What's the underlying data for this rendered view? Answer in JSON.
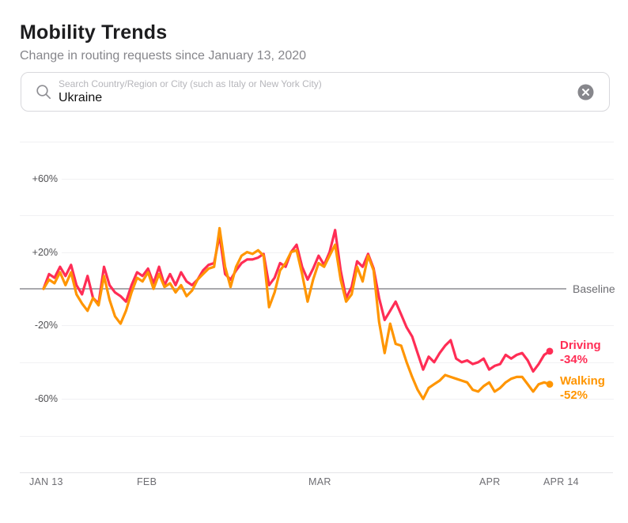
{
  "header": {
    "title": "Mobility Trends",
    "subtitle": "Change in routing requests since January 13, 2020"
  },
  "search": {
    "placeholder": "Search Country/Region or City (such as Italy or New York City)",
    "value": "Ukraine",
    "search_icon": "magnifying-glass",
    "clear_icon": "circle-x"
  },
  "chart_data": {
    "type": "line",
    "title": "Mobility Trends",
    "xlabel": "",
    "ylabel": "Change in routing requests (%)",
    "grid": "horizontal-only",
    "x": {
      "unit": "day",
      "num_points": 93,
      "tick_days": [
        0,
        19,
        48,
        79,
        92
      ],
      "tick_labels": [
        "JAN 13",
        "FEB",
        "MAR",
        "APR",
        "APR 14"
      ]
    },
    "y": {
      "unit": "%",
      "ylim": [
        -100,
        80
      ],
      "gridline_step": 20,
      "gridlines": [
        {
          "value": 80,
          "label": ""
        },
        {
          "value": 60,
          "label": "+60%"
        },
        {
          "value": 40,
          "label": ""
        },
        {
          "value": 20,
          "label": "+20%"
        },
        {
          "value": 0,
          "label": "",
          "baseline": true
        },
        {
          "value": -20,
          "label": "-20%"
        },
        {
          "value": -40,
          "label": ""
        },
        {
          "value": -60,
          "label": "-60%"
        },
        {
          "value": -80,
          "label": ""
        }
      ]
    },
    "baseline_label": "Baseline",
    "series": [
      {
        "name": "Driving",
        "color": "#ff2d55",
        "end_label": "Driving",
        "end_value_label": "-34%",
        "values": [
          0,
          8,
          6,
          12,
          7,
          13,
          2,
          -3,
          7,
          -5,
          -8,
          12,
          2,
          -2,
          -4,
          -7,
          2,
          9,
          7,
          11,
          3,
          12,
          2,
          8,
          2,
          9,
          4,
          2,
          5,
          10,
          13,
          14,
          29,
          8,
          5,
          10,
          14,
          16,
          16,
          17,
          19,
          2,
          6,
          14,
          12,
          20,
          24,
          12,
          5,
          11,
          18,
          13,
          20,
          32,
          10,
          -5,
          1,
          15,
          12,
          19,
          11,
          -5,
          -17,
          -12,
          -7,
          -14,
          -21,
          -26,
          -35,
          -44,
          -37,
          -40,
          -35,
          -31,
          -28,
          -38,
          -40,
          -39,
          -41,
          -40,
          -38,
          -44,
          -42,
          -41,
          -36,
          -38,
          -36,
          -35,
          -39,
          -45,
          -41,
          -36,
          -34
        ]
      },
      {
        "name": "Walking",
        "color": "#ff9500",
        "end_label": "Walking",
        "end_value_label": "-52%",
        "values": [
          0,
          5,
          3,
          9,
          2,
          9,
          -3,
          -8,
          -12,
          -5,
          -9,
          7,
          -6,
          -15,
          -19,
          -12,
          -2,
          6,
          4,
          9,
          0,
          8,
          1,
          3,
          -2,
          2,
          -4,
          -1,
          5,
          8,
          11,
          12,
          33,
          12,
          1,
          12,
          18,
          20,
          19,
          21,
          18,
          -10,
          -2,
          10,
          14,
          20,
          21,
          8,
          -7,
          5,
          14,
          12,
          18,
          24,
          5,
          -7,
          -3,
          12,
          4,
          18,
          10,
          -18,
          -35,
          -19,
          -30,
          -31,
          -40,
          -48,
          -55,
          -60,
          -54,
          -52,
          -50,
          -47,
          -48,
          -49,
          -50,
          -51,
          -55,
          -56,
          -53,
          -51,
          -56,
          -54,
          -51,
          -49,
          -48,
          -48,
          -52,
          -56,
          -52,
          -51,
          -52
        ]
      }
    ]
  }
}
